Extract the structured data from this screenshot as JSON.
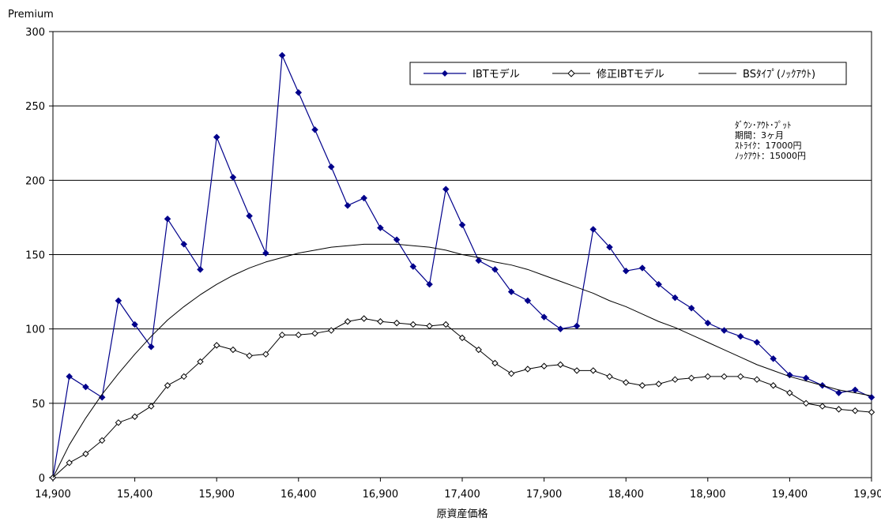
{
  "chart_data": {
    "type": "line",
    "title": "",
    "ylabel": "Premium",
    "xlabel": "原資産価格",
    "xlim": [
      14900,
      19900
    ],
    "ylim": [
      0,
      300
    ],
    "x_ticks": [
      "14,900",
      "15,400",
      "15,900",
      "16,400",
      "16,900",
      "17,400",
      "17,900",
      "18,400",
      "18,900",
      "19,400",
      "19,900"
    ],
    "y_ticks": [
      "0",
      "50",
      "100",
      "150",
      "200",
      "250",
      "300"
    ],
    "grid": "horizontal",
    "legend_position": "top-right",
    "annotation": [
      "ﾀﾞｳﾝ･ｱｳﾄ･ﾌﾟｯﾄ",
      "期間：3ヶ月",
      "ｽﾄﾗｲｸ：17000円",
      "ﾉｯｸｱｳﾄ：15000円"
    ],
    "x": [
      14900,
      15000,
      15100,
      15200,
      15300,
      15400,
      15500,
      15600,
      15700,
      15800,
      15900,
      16000,
      16100,
      16200,
      16300,
      16400,
      16500,
      16600,
      16700,
      16800,
      16900,
      17000,
      17100,
      17200,
      17300,
      17400,
      17500,
      17600,
      17700,
      17800,
      17900,
      18000,
      18100,
      18200,
      18300,
      18400,
      18500,
      18600,
      18700,
      18800,
      18900,
      19000,
      19100,
      19200,
      19300,
      19400,
      19500,
      19600,
      19700,
      19800,
      19900
    ],
    "series": [
      {
        "name": "IBTモデル",
        "color": "#00008b",
        "marker": "diamond-filled",
        "values": [
          0,
          68,
          61,
          54,
          119,
          103,
          88,
          174,
          157,
          140,
          229,
          202,
          176,
          151,
          284,
          259,
          234,
          209,
          183,
          188,
          168,
          160,
          142,
          130,
          194,
          170,
          146,
          140,
          125,
          119,
          108,
          100,
          102,
          167,
          155,
          139,
          141,
          130,
          121,
          114,
          104,
          99,
          95,
          91,
          80,
          69,
          67,
          62,
          57,
          59,
          54
        ]
      },
      {
        "name": "修正IBTモデル",
        "color": "#000000",
        "marker": "diamond-open",
        "values": [
          0,
          10,
          16,
          25,
          37,
          41,
          48,
          62,
          68,
          78,
          89,
          86,
          82,
          83,
          96,
          96,
          97,
          99,
          105,
          107,
          105,
          104,
          103,
          102,
          103,
          94,
          86,
          77,
          70,
          73,
          75,
          76,
          72,
          72,
          68,
          64,
          62,
          63,
          66,
          67,
          68,
          68,
          68,
          66,
          62,
          57,
          50,
          48,
          46,
          45,
          44
        ]
      },
      {
        "name": "BSﾀｲﾌﾟ(ﾉｯｸｱｳﾄ)",
        "color": "#000000",
        "marker": "none",
        "values": [
          0,
          22,
          40,
          56,
          70,
          83,
          95,
          106,
          115,
          123,
          130,
          136,
          141,
          145,
          148,
          151,
          153,
          155,
          156,
          157,
          157,
          157,
          156,
          155,
          153,
          150,
          148,
          145,
          143,
          140,
          136,
          132,
          128,
          124,
          119,
          115,
          110,
          105,
          101,
          96,
          91,
          86,
          81,
          76,
          72,
          68,
          65,
          62,
          59,
          57,
          55
        ]
      }
    ]
  }
}
